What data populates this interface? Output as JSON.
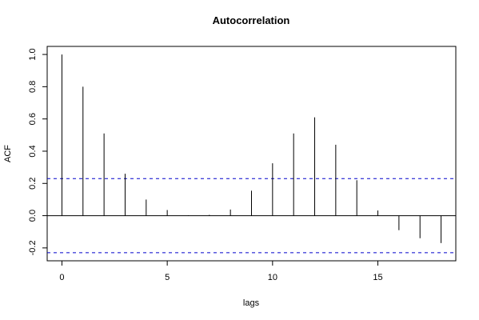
{
  "chart_data": {
    "type": "bar",
    "title": "Autocorrelation",
    "xlabel": "lags",
    "ylabel": "ACF",
    "x": [
      0,
      1,
      2,
      3,
      4,
      5,
      6,
      7,
      8,
      9,
      10,
      11,
      12,
      13,
      14,
      15,
      16,
      17,
      18
    ],
    "values": [
      1.0,
      0.8,
      0.51,
      0.26,
      0.1,
      0.035,
      0.002,
      0.005,
      0.038,
      0.155,
      0.325,
      0.51,
      0.61,
      0.44,
      0.22,
      0.032,
      -0.09,
      -0.14,
      -0.17
    ],
    "confidence_band": 0.23,
    "xlim": [
      -0.7,
      18.7
    ],
    "ylim": [
      -0.28,
      1.05
    ],
    "x_ticks": [
      "0",
      "5",
      "10",
      "15"
    ],
    "x_tick_values": [
      0,
      5,
      10,
      15
    ],
    "y_ticks": [
      "-0.2",
      "0.0",
      "0.2",
      "0.4",
      "0.6",
      "0.8",
      "1.0"
    ],
    "y_tick_values": [
      -0.2,
      0.0,
      0.2,
      0.4,
      0.6,
      0.8,
      1.0
    ],
    "grid": false,
    "band_color": "#0000cc",
    "bar_color": "#000000"
  }
}
